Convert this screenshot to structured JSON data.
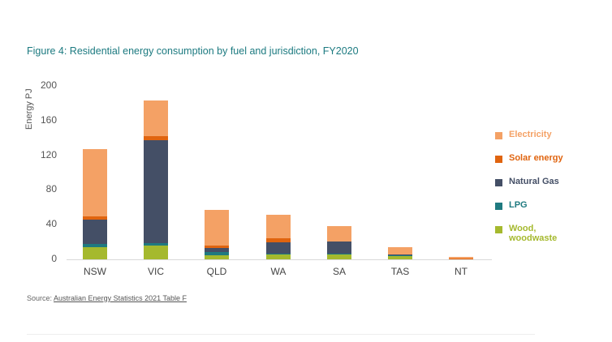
{
  "title": "Figure 4: Residential energy  consumption by fuel and jurisdiction, FY2020",
  "source": {
    "prefix": "Source: ",
    "link_text": "Australian  Energy Statistics  2021 Table F"
  },
  "chart_data": {
    "type": "bar",
    "stacked": true,
    "title": "Figure 4: Residential energy consumption by fuel and jurisdiction, FY2020",
    "xlabel": "",
    "ylabel": "Energy PJ",
    "ylim": [
      0,
      200
    ],
    "yticks": [
      "0",
      "40",
      "80",
      "120",
      "160",
      "200"
    ],
    "grid": false,
    "legend_position": "right",
    "categories": [
      "NSW",
      "VIC",
      "QLD",
      "WA",
      "SA",
      "TAS",
      "NT"
    ],
    "series": [
      {
        "name": "Wood, woodwaste",
        "color": "#a5b92e",
        "values": [
          14,
          16,
          5,
          6,
          6,
          4,
          0
        ]
      },
      {
        "name": "LPG",
        "color": "#1f7a80",
        "values": [
          4,
          3,
          3,
          1,
          0.5,
          0.5,
          0
        ]
      },
      {
        "name": "Natural Gas",
        "color": "#444f66",
        "values": [
          28,
          118,
          5,
          13,
          14,
          1,
          0
        ]
      },
      {
        "name": "Solar energy",
        "color": "#e0640f",
        "values": [
          4,
          5,
          3,
          4,
          0.5,
          0.5,
          0.5
        ]
      },
      {
        "name": "Electricity",
        "color": "#f4a165",
        "values": [
          77,
          41,
          41,
          27,
          17,
          8,
          2.5
        ]
      }
    ]
  },
  "legend": [
    {
      "label": "Electricity",
      "color": "#f4a165"
    },
    {
      "label": "Solar energy",
      "color": "#e0640f"
    },
    {
      "label": "Natural Gas",
      "color": "#444f66"
    },
    {
      "label": "LPG",
      "color": "#1f7a80"
    },
    {
      "label": "Wood, woodwaste",
      "color": "#a5b92e"
    }
  ]
}
